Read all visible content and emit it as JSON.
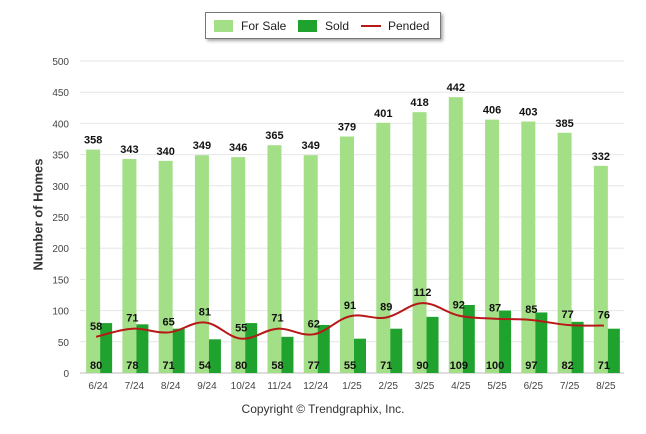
{
  "chart_data": {
    "type": "bar",
    "categories": [
      "6/24",
      "7/24",
      "8/24",
      "9/24",
      "10/24",
      "11/24",
      "12/24",
      "1/25",
      "2/25",
      "3/25",
      "4/25",
      "5/25",
      "6/25",
      "7/25",
      "8/25"
    ],
    "series": [
      {
        "name": "For Sale",
        "type": "bar",
        "color": "#a3df87",
        "values": [
          358,
          343,
          340,
          349,
          346,
          365,
          349,
          379,
          401,
          418,
          442,
          406,
          403,
          385,
          332
        ]
      },
      {
        "name": "Sold",
        "type": "bar",
        "color": "#1fa32e",
        "values": [
          80,
          78,
          71,
          54,
          80,
          58,
          77,
          55,
          71,
          90,
          109,
          100,
          97,
          82,
          71
        ]
      },
      {
        "name": "Pended",
        "type": "line",
        "color": "#b81818",
        "values": [
          58,
          71,
          65,
          81,
          55,
          71,
          62,
          91,
          89,
          112,
          92,
          87,
          85,
          77,
          76
        ]
      }
    ],
    "ylabel": "Number of Homes",
    "xlabel": "",
    "ylim": [
      0,
      500
    ],
    "yticks": [
      0,
      50,
      100,
      150,
      200,
      250,
      300,
      350,
      400,
      450,
      500
    ],
    "grid": true,
    "legend_position": "top-center"
  },
  "footer": {
    "copyright": "Copyright © Trendgraphix, Inc."
  }
}
